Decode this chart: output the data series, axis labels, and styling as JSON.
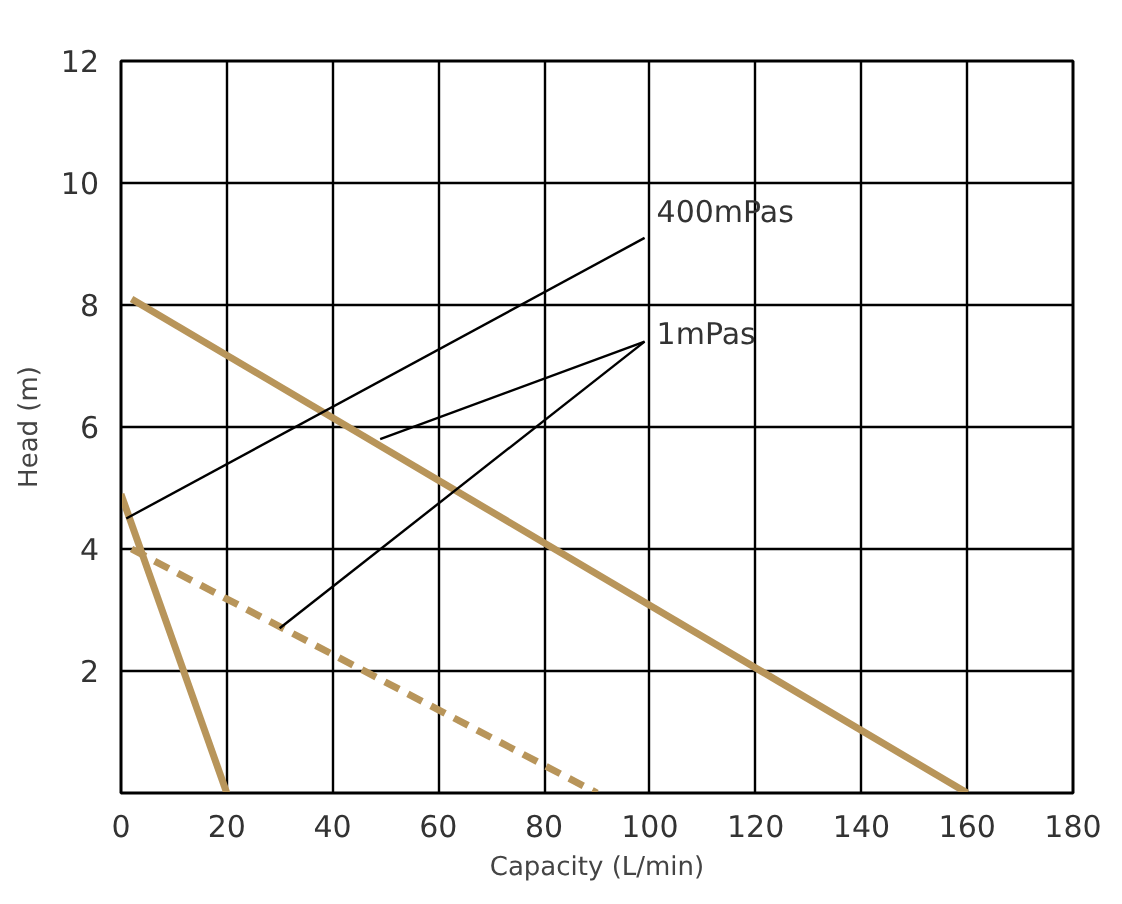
{
  "chart_data": {
    "type": "line",
    "xlabel": "Capacity (L/min)",
    "ylabel": "Head (m)",
    "xlim": [
      0,
      180
    ],
    "ylim": [
      0,
      12
    ],
    "xticks": [
      0,
      20,
      40,
      60,
      80,
      100,
      120,
      140,
      160,
      180
    ],
    "yticks": [
      2,
      4,
      6,
      8,
      10,
      12
    ],
    "grid": true,
    "series": [
      {
        "color": "#b8955a",
        "x": [
          2,
          160
        ],
        "values": [
          8.1,
          0
        ]
      },
      {
        "color": "#b8955a",
        "x": [
          0,
          20
        ],
        "values": [
          4.9,
          0
        ]
      },
      {
        "color": "#b8955a",
        "x": [
          2,
          90
        ],
        "values": [
          4,
          0
        ],
        "line_style": "dashed"
      },
      {
        "color": "#000000",
        "x": [
          99,
          1
        ],
        "values": [
          9.1,
          4.5
        ]
      },
      {
        "color": "#000000",
        "x": [
          99,
          49
        ],
        "values": [
          7.4,
          5.8
        ]
      },
      {
        "color": "#000000",
        "x": [
          99,
          30
        ],
        "values": [
          7.4,
          2.7
        ]
      }
    ],
    "annotations": [
      "400mPas",
      "1mPas"
    ]
  }
}
